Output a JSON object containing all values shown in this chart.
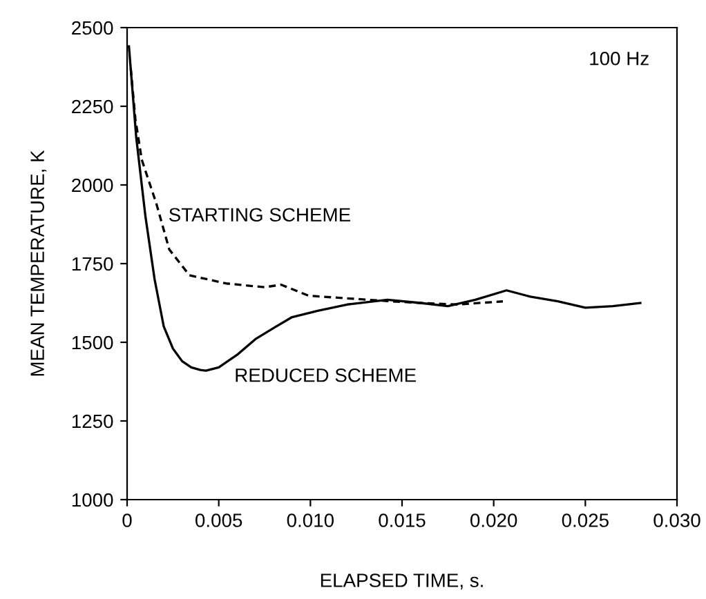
{
  "chart_data": {
    "type": "line",
    "xlabel": "ELAPSED TIME, s.",
    "ylabel": "MEAN TEMPERATURE, K",
    "xlim": [
      0,
      0.03
    ],
    "ylim": [
      1000,
      2500
    ],
    "xticks": [
      {
        "value": 0,
        "label": "0"
      },
      {
        "value": 0.005,
        "label": "0.005"
      },
      {
        "value": 0.01,
        "label": "0.010"
      },
      {
        "value": 0.015,
        "label": "0.015"
      },
      {
        "value": 0.02,
        "label": "0.020"
      },
      {
        "value": 0.025,
        "label": "0.025"
      },
      {
        "value": 0.03,
        "label": "0.030"
      }
    ],
    "yticks": [
      1000,
      1250,
      1500,
      1750,
      2000,
      2250,
      2500
    ],
    "annotations": [
      "STARTING SCHEME",
      "REDUCED SCHEME",
      "100 Hz"
    ],
    "series": [
      {
        "color": "#000000",
        "line_style": "solid",
        "x": [
          0.0001,
          0.0005,
          0.001,
          0.0015,
          0.002,
          0.0025,
          0.003,
          0.0035,
          0.004,
          0.0043,
          0.005,
          0.006,
          0.007,
          0.0081,
          0.009,
          0.0104,
          0.012,
          0.0142,
          0.016,
          0.0175,
          0.019,
          0.0207,
          0.022,
          0.0235,
          0.025,
          0.0265,
          0.028
        ],
        "values": [
          2440,
          2150,
          1900,
          1700,
          1550,
          1480,
          1440,
          1420,
          1412,
          1410,
          1420,
          1460,
          1510,
          1549,
          1580,
          1600,
          1620,
          1635,
          1625,
          1615,
          1635,
          1665,
          1645,
          1630,
          1610,
          1615,
          1625
        ]
      },
      {
        "color": "#000000",
        "line_style": "dashed",
        "x": [
          0.0002,
          0.00045,
          0.0008,
          0.0016,
          0.0023,
          0.0034,
          0.0054,
          0.0075,
          0.0084,
          0.0099,
          0.0142,
          0.016,
          0.018,
          0.0205
        ],
        "values": [
          2370,
          2210,
          2080,
          1940,
          1795,
          1713,
          1687,
          1675,
          1683,
          1648,
          1631,
          1625,
          1620,
          1630
        ]
      }
    ]
  }
}
